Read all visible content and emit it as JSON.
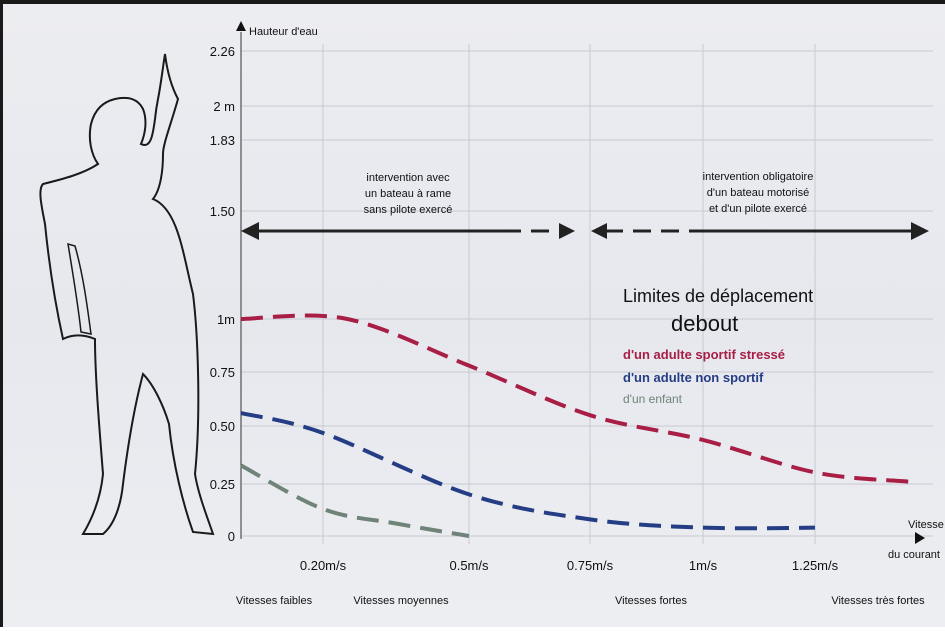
{
  "chart_data": {
    "type": "line",
    "ylabel": "Hauteur d'eau",
    "xlabel_line1": "Vitesse",
    "xlabel_line2": "du courant",
    "yticks": [
      "2.26",
      "2 m",
      "1.83",
      "1.50",
      "1m",
      "0.75",
      "0.50",
      "0.25",
      "0"
    ],
    "ytick_values": [
      2.26,
      2.0,
      1.83,
      1.5,
      1.0,
      0.75,
      0.5,
      0.25,
      0
    ],
    "xticks": [
      "0.20m/s",
      "0.5m/s",
      "0.75m/s",
      "1m/s",
      "1.25m/s"
    ],
    "xtick_values": [
      0.2,
      0.5,
      0.75,
      1.0,
      1.25
    ],
    "ylim": [
      0,
      2.26
    ],
    "xlim": [
      0,
      1.5
    ],
    "grid": true,
    "speed_categories": [
      "Vitesses faibles",
      "Vitesses moyennes",
      "Vitesses fortes",
      "Vitesses très fortes"
    ],
    "legend": {
      "title_line1": "Limites de déplacement",
      "title_line2": "debout"
    },
    "series": [
      {
        "name": "d'un adulte sportif stressé",
        "color": "#a81e45",
        "points": [
          [
            0.0,
            1.0
          ],
          [
            0.25,
            1.0
          ],
          [
            0.5,
            0.78
          ],
          [
            0.75,
            0.55
          ],
          [
            1.0,
            0.44
          ],
          [
            1.25,
            0.3
          ],
          [
            1.45,
            0.26
          ]
        ]
      },
      {
        "name": "d'un adulte non sportif",
        "color": "#253d85",
        "points": [
          [
            0.0,
            0.56
          ],
          [
            0.2,
            0.47
          ],
          [
            0.5,
            0.2
          ],
          [
            0.75,
            0.08
          ],
          [
            1.0,
            0.04
          ],
          [
            1.25,
            0.04
          ]
        ]
      },
      {
        "name": "d'un enfant",
        "color": "#6f8378",
        "points": [
          [
            0.0,
            0.33
          ],
          [
            0.2,
            0.13
          ],
          [
            0.35,
            0.06
          ],
          [
            0.5,
            0.0
          ]
        ]
      }
    ],
    "annotations": [
      {
        "lines": [
          "intervention avec",
          "un bateau à rame",
          "sans pilote exercé"
        ]
      },
      {
        "lines": [
          "intervention obligatoire",
          "d'un bateau motorisé",
          "et d'un pilote exercé"
        ]
      }
    ]
  }
}
